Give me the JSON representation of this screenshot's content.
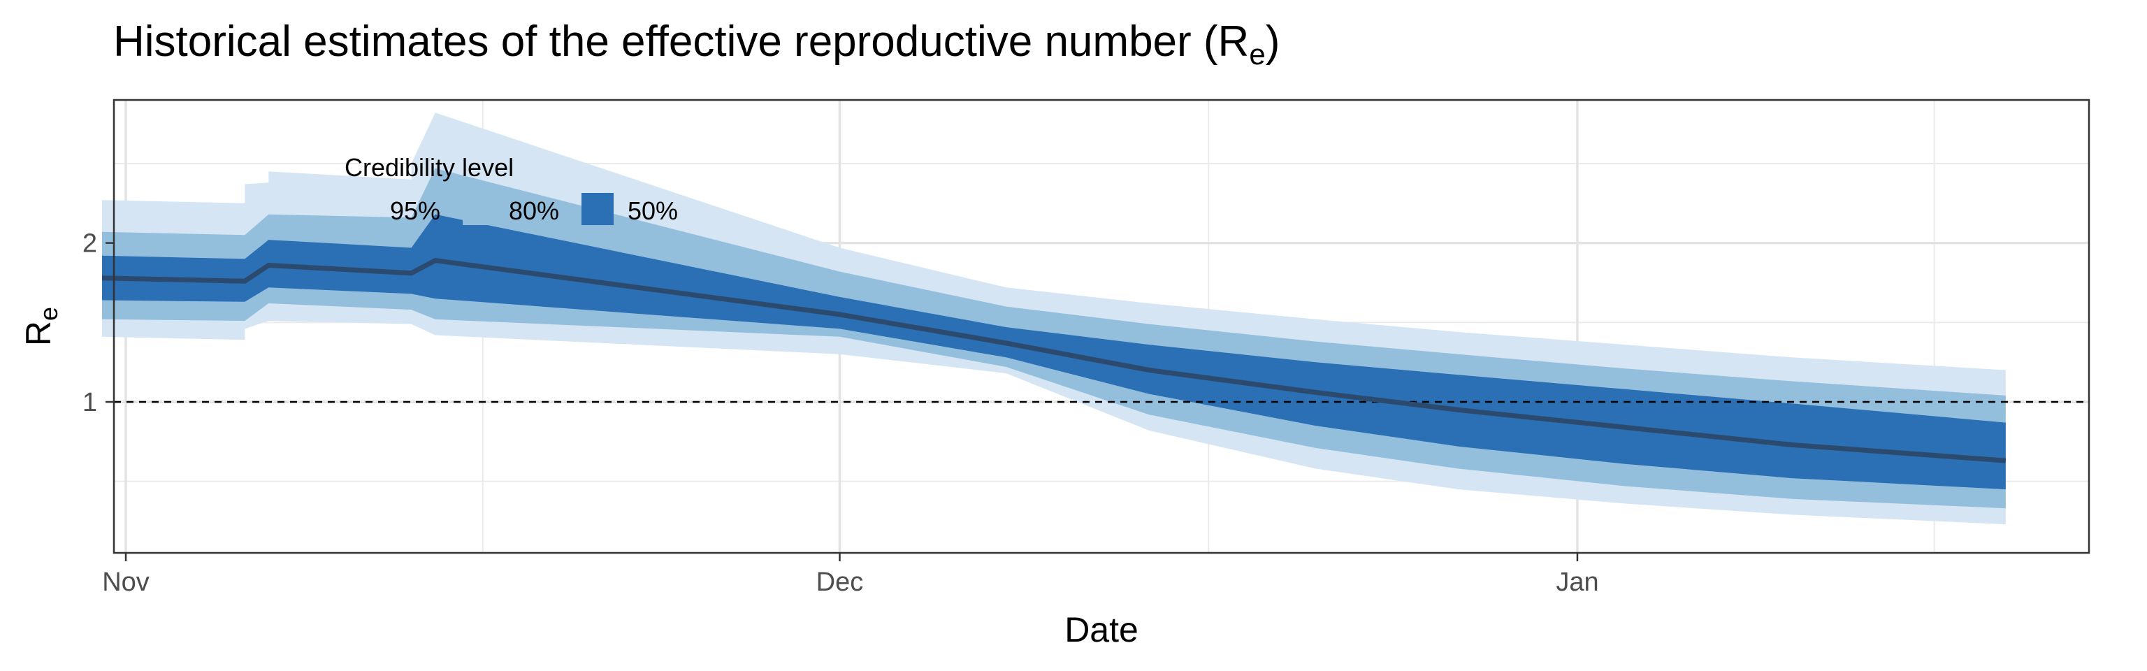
{
  "chart_data": {
    "type": "area",
    "title": "Historical estimates of the effective reproductive number (R",
    "title_subscript": "e",
    "title_suffix": ")",
    "xlabel": "Date",
    "ylabel": "R",
    "ylabel_subscript": "e",
    "xlim": [
      -0.5,
      82.5
    ],
    "ylim": [
      0.05,
      2.9
    ],
    "x_ticks": [
      {
        "label": "Nov",
        "x": 0
      },
      {
        "label": "Dec",
        "x": 30
      },
      {
        "label": "Jan",
        "x": 61
      }
    ],
    "x_minor": [
      15,
      45.5,
      76
    ],
    "y_ticks": [
      1,
      2
    ],
    "y_minor": [
      0.5,
      1.5,
      2.5
    ],
    "reference_line": 1,
    "grid": true,
    "legend": {
      "title": "Credibility level",
      "position": "top-left",
      "entries": [
        {
          "label": "95%",
          "color": "#d5e5f4"
        },
        {
          "label": "80%",
          "color": "#93bfdd"
        },
        {
          "label": "50%",
          "color": "#2b6fb5"
        }
      ]
    },
    "colors": {
      "band95": "#d5e5f4",
      "band80": "#93bfdd",
      "band50": "#2b6fb5",
      "median": "#2c4a6e"
    },
    "series": [
      {
        "name": "median",
        "x": [
          -1,
          5,
          6,
          12,
          13,
          30,
          37,
          43,
          50,
          56,
          63,
          70,
          79
        ],
        "values": [
          1.78,
          1.76,
          1.86,
          1.81,
          1.89,
          1.55,
          1.37,
          1.2,
          1.06,
          0.95,
          0.84,
          0.73,
          0.63
        ]
      },
      {
        "name": "50% upper",
        "x": [
          -1,
          5,
          6,
          12,
          13,
          30,
          37,
          43,
          50,
          56,
          63,
          70,
          79
        ],
        "values": [
          1.92,
          1.9,
          2.02,
          1.97,
          2.18,
          1.66,
          1.47,
          1.36,
          1.25,
          1.17,
          1.08,
          0.99,
          0.87
        ]
      },
      {
        "name": "50% lower",
        "x": [
          -1,
          5,
          6,
          12,
          13,
          30,
          37,
          43,
          50,
          56,
          63,
          70,
          79
        ],
        "values": [
          1.64,
          1.63,
          1.72,
          1.68,
          1.65,
          1.46,
          1.28,
          1.05,
          0.85,
          0.72,
          0.61,
          0.52,
          0.45
        ]
      },
      {
        "name": "80% upper",
        "x": [
          -1,
          5,
          6,
          12,
          13,
          30,
          37,
          43,
          50,
          56,
          63,
          70,
          79
        ],
        "values": [
          2.07,
          2.05,
          2.18,
          2.16,
          2.47,
          1.82,
          1.6,
          1.49,
          1.38,
          1.3,
          1.21,
          1.13,
          1.04
        ]
      },
      {
        "name": "80% lower",
        "x": [
          -1,
          5,
          6,
          12,
          13,
          30,
          37,
          43,
          50,
          56,
          63,
          70,
          79
        ],
        "values": [
          1.52,
          1.51,
          1.62,
          1.58,
          1.52,
          1.41,
          1.22,
          0.92,
          0.71,
          0.58,
          0.47,
          0.39,
          0.33
        ]
      },
      {
        "name": "95% upper",
        "x": [
          -1,
          5,
          5,
          6,
          6,
          12,
          12,
          13,
          30,
          37,
          43,
          50,
          56,
          63,
          70,
          79
        ],
        "values": [
          2.27,
          2.25,
          2.37,
          2.38,
          2.45,
          2.4,
          2.5,
          2.82,
          1.97,
          1.72,
          1.62,
          1.52,
          1.44,
          1.36,
          1.28,
          1.2
        ]
      },
      {
        "name": "95% lower",
        "x": [
          -1,
          5,
          5,
          6,
          6,
          12,
          13,
          30,
          37,
          43,
          50,
          56,
          63,
          70,
          79
        ],
        "values": [
          1.41,
          1.39,
          1.46,
          1.51,
          1.51,
          1.49,
          1.42,
          1.3,
          1.18,
          0.82,
          0.58,
          0.45,
          0.36,
          0.29,
          0.23
        ]
      }
    ]
  }
}
